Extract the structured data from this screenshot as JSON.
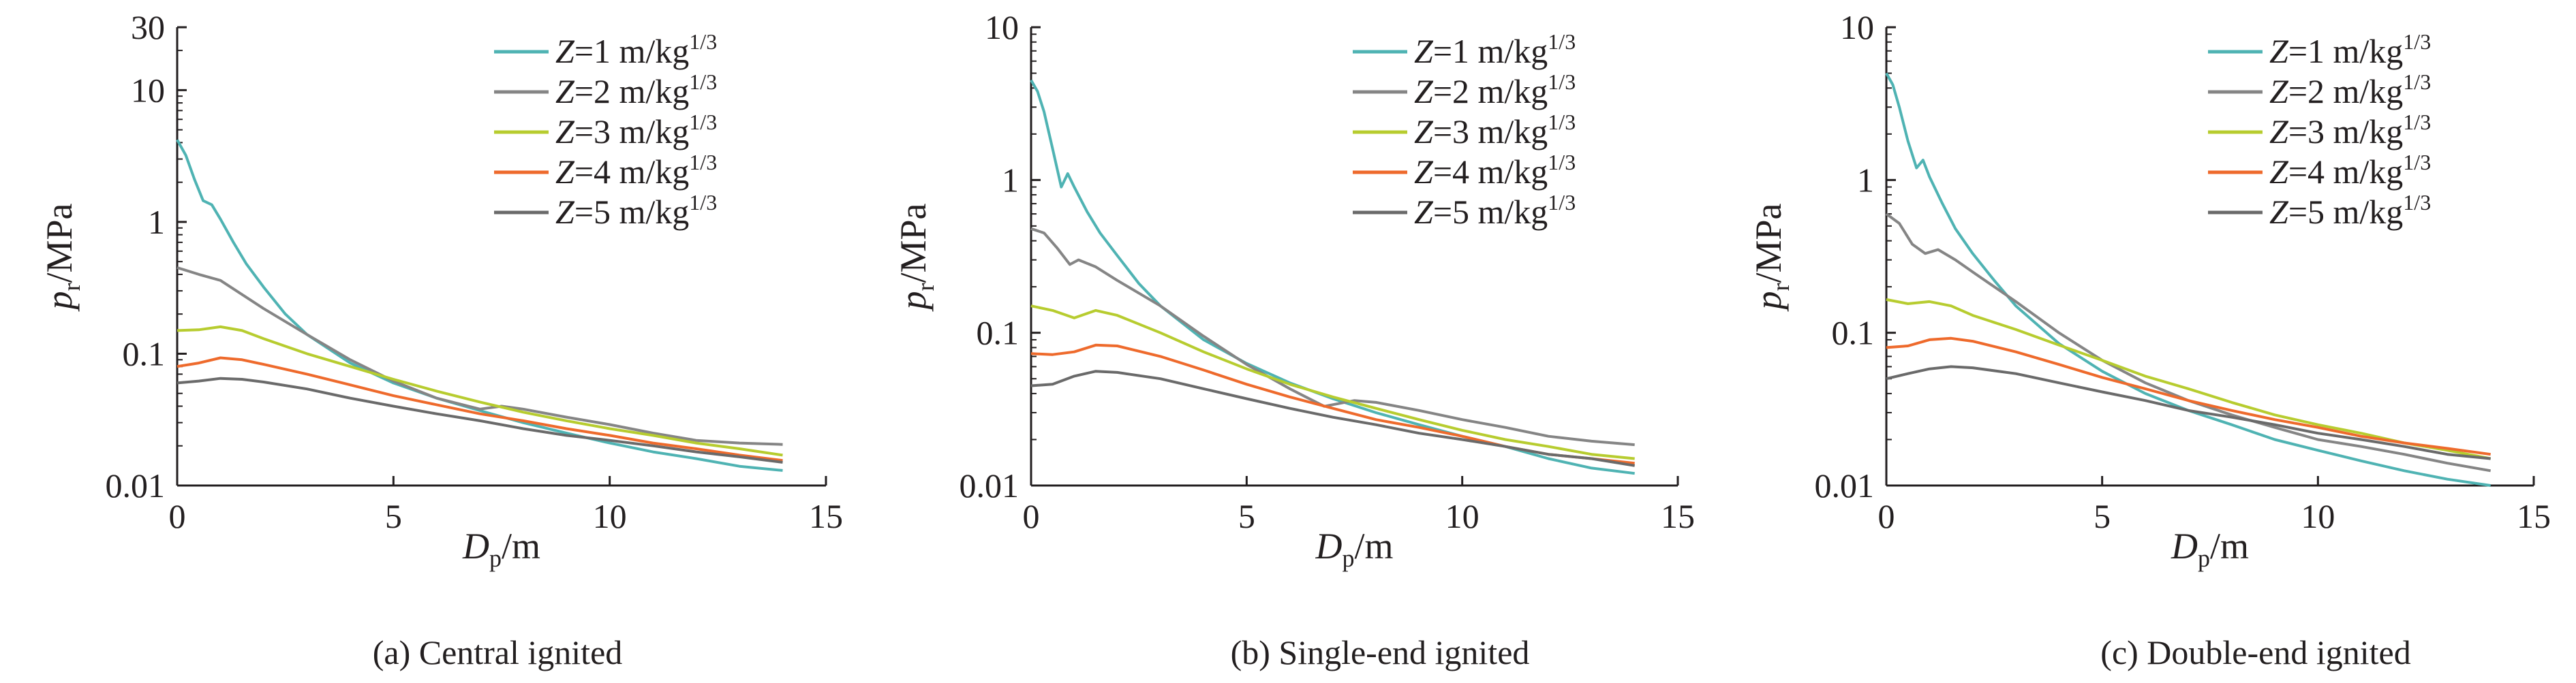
{
  "colors": {
    "z1": "#4fb3b3",
    "z2": "#858585",
    "z3": "#b7cc2f",
    "z4": "#ee6a2c",
    "z5": "#6a6a6a",
    "z1_inner": "#3d8f6a",
    "z4_inner": "#8a5aa0",
    "axis": "#231f20"
  },
  "legend": {
    "prefix": "Z",
    "unit_text": " m/kg",
    "unit_exp": "1/3",
    "entries": [
      {
        "value": "=1",
        "color_key": "z1"
      },
      {
        "value": "=2",
        "color_key": "z2"
      },
      {
        "value": "=3",
        "color_key": "z3"
      },
      {
        "value": "=4",
        "color_key": "z4"
      },
      {
        "value": "=5",
        "color_key": "z5"
      }
    ]
  },
  "axes": {
    "x_label_main": "D",
    "x_label_sub": "p",
    "x_label_unit": "/m",
    "y_label_main": "p",
    "y_label_sub": "r",
    "y_label_unit": "/MPa",
    "x_ticks": [
      "0",
      "5",
      "10",
      "15"
    ]
  },
  "chart_data": [
    {
      "type": "line",
      "title": "(a) Central ignited",
      "xlabel": "Dp/m",
      "ylabel": "pr/MPa",
      "xlim": [
        0,
        15
      ],
      "ylim": [
        0.01,
        30
      ],
      "y_scale": "log",
      "y_ticks": [
        0.01,
        0.1,
        1,
        10,
        30
      ],
      "y_tick_labels": [
        "0.01",
        "0.1",
        "1",
        "10",
        "30"
      ],
      "legend_position": "top-right",
      "series": [
        {
          "name": "Z=1 m/kg1/3",
          "color_key": "z1",
          "x": [
            0,
            0.2,
            0.4,
            0.6,
            0.8,
            1.0,
            1.3,
            1.6,
            2.0,
            2.5,
            3.0,
            4.0,
            5.0,
            6.0,
            7.0,
            8.0,
            9.0,
            10.0,
            11.0,
            12.0,
            13.0,
            14.0
          ],
          "y": [
            4.2,
            3.2,
            2.1,
            1.45,
            1.35,
            1.05,
            0.7,
            0.48,
            0.32,
            0.2,
            0.14,
            0.085,
            0.06,
            0.046,
            0.037,
            0.03,
            0.025,
            0.021,
            0.018,
            0.016,
            0.014,
            0.013
          ]
        },
        {
          "name": "Z=2 m/kg1/3",
          "color_key": "z2",
          "x": [
            0,
            0.5,
            1.0,
            2.0,
            3.0,
            4.0,
            5.0,
            6.0,
            7.0,
            7.5,
            8.0,
            9.0,
            10.0,
            11.0,
            12.0,
            13.0,
            14.0
          ],
          "y": [
            0.45,
            0.4,
            0.36,
            0.22,
            0.14,
            0.09,
            0.062,
            0.046,
            0.038,
            0.04,
            0.038,
            0.033,
            0.029,
            0.025,
            0.022,
            0.021,
            0.0205
          ]
        },
        {
          "name": "Z=3 m/kg1/3",
          "color_key": "z3",
          "x": [
            0,
            0.5,
            1.0,
            1.5,
            2.0,
            3.0,
            4.0,
            5.0,
            6.0,
            7.0,
            8.0,
            9.0,
            10.0,
            11.0,
            12.0,
            13.0,
            14.0
          ],
          "y": [
            0.15,
            0.152,
            0.16,
            0.15,
            0.13,
            0.1,
            0.08,
            0.064,
            0.052,
            0.043,
            0.036,
            0.031,
            0.027,
            0.024,
            0.021,
            0.019,
            0.017
          ]
        },
        {
          "name": "Z=4 m/kg1/3",
          "color_key": "z4",
          "x": [
            0,
            0.5,
            1.0,
            1.5,
            2.0,
            3.0,
            4.0,
            5.0,
            6.0,
            7.0,
            8.0,
            9.0,
            10.0,
            11.0,
            12.0,
            13.0,
            14.0
          ],
          "y": [
            0.08,
            0.085,
            0.093,
            0.09,
            0.083,
            0.07,
            0.058,
            0.048,
            0.041,
            0.035,
            0.031,
            0.027,
            0.024,
            0.021,
            0.019,
            0.017,
            0.0155
          ]
        },
        {
          "name": "Z=5 m/kg1/3",
          "color_key": "z5",
          "x": [
            0,
            0.5,
            1.0,
            1.5,
            2.0,
            3.0,
            4.0,
            5.0,
            6.0,
            7.0,
            8.0,
            9.0,
            10.0,
            11.0,
            12.0,
            13.0,
            14.0
          ],
          "y": [
            0.06,
            0.062,
            0.065,
            0.064,
            0.061,
            0.054,
            0.046,
            0.04,
            0.035,
            0.031,
            0.027,
            0.024,
            0.022,
            0.02,
            0.018,
            0.0165,
            0.015
          ]
        }
      ]
    },
    {
      "type": "line",
      "title": "(b) Single-end ignited",
      "xlabel": "Dp/m",
      "ylabel": "pr/MPa",
      "xlim": [
        0,
        15
      ],
      "ylim": [
        0.01,
        10
      ],
      "y_scale": "log",
      "y_ticks": [
        0.01,
        0.1,
        1,
        10
      ],
      "y_tick_labels": [
        "0.01",
        "0.1",
        "1",
        "10"
      ],
      "legend_position": "top-right",
      "series": [
        {
          "name": "Z=1 m/kg1/3",
          "color_key": "z1",
          "x": [
            0,
            0.15,
            0.3,
            0.5,
            0.7,
            0.85,
            1.0,
            1.3,
            1.6,
            2.0,
            2.5,
            3.0,
            4.0,
            5.0,
            6.0,
            7.0,
            8.0,
            9.0,
            10.0,
            11.0,
            12.0,
            13.0,
            14.0
          ],
          "y": [
            4.5,
            3.8,
            2.8,
            1.6,
            0.9,
            1.1,
            0.9,
            0.62,
            0.45,
            0.32,
            0.21,
            0.15,
            0.09,
            0.063,
            0.047,
            0.037,
            0.03,
            0.025,
            0.021,
            0.018,
            0.015,
            0.013,
            0.012
          ]
        },
        {
          "name": "Z=2 m/kg1/3",
          "color_key": "z2",
          "x": [
            0,
            0.3,
            0.6,
            0.9,
            1.1,
            1.5,
            2.0,
            3.0,
            4.0,
            5.0,
            6.0,
            6.8,
            7.5,
            8.0,
            9.0,
            10.0,
            11.0,
            12.0,
            13.0,
            14.0
          ],
          "y": [
            0.48,
            0.45,
            0.36,
            0.28,
            0.3,
            0.27,
            0.22,
            0.15,
            0.095,
            0.062,
            0.043,
            0.033,
            0.036,
            0.035,
            0.031,
            0.027,
            0.024,
            0.021,
            0.0195,
            0.0185
          ]
        },
        {
          "name": "Z=3 m/kg1/3",
          "color_key": "z3",
          "x": [
            0,
            0.5,
            1.0,
            1.5,
            2.0,
            3.0,
            4.0,
            5.0,
            6.0,
            7.0,
            8.0,
            9.0,
            10.0,
            11.0,
            12.0,
            13.0,
            14.0
          ],
          "y": [
            0.15,
            0.14,
            0.125,
            0.14,
            0.13,
            0.1,
            0.075,
            0.058,
            0.046,
            0.038,
            0.032,
            0.027,
            0.023,
            0.02,
            0.018,
            0.016,
            0.015
          ]
        },
        {
          "name": "Z=4 m/kg1/3",
          "color_key": "z4",
          "x": [
            0,
            0.5,
            1.0,
            1.5,
            2.0,
            3.0,
            4.0,
            5.0,
            6.0,
            7.0,
            8.0,
            9.0,
            10.0,
            11.0,
            12.0,
            13.0,
            14.0
          ],
          "y": [
            0.073,
            0.072,
            0.075,
            0.083,
            0.082,
            0.07,
            0.057,
            0.046,
            0.038,
            0.032,
            0.027,
            0.024,
            0.021,
            0.018,
            0.016,
            0.015,
            0.014
          ]
        },
        {
          "name": "Z=5 m/kg1/3",
          "color_key": "z5",
          "x": [
            0,
            0.5,
            1.0,
            1.5,
            2.0,
            3.0,
            4.0,
            5.0,
            6.0,
            7.0,
            8.0,
            9.0,
            10.0,
            11.0,
            12.0,
            13.0,
            14.0
          ],
          "y": [
            0.045,
            0.046,
            0.052,
            0.056,
            0.055,
            0.05,
            0.043,
            0.037,
            0.032,
            0.028,
            0.025,
            0.022,
            0.02,
            0.018,
            0.016,
            0.015,
            0.0135
          ]
        }
      ]
    },
    {
      "type": "line",
      "title": "(c) Double-end ignited",
      "xlabel": "Dp/m",
      "ylabel": "pr/MPa",
      "xlim": [
        0,
        15
      ],
      "ylim": [
        0.01,
        10
      ],
      "y_scale": "log",
      "y_ticks": [
        0.01,
        0.1,
        1,
        10
      ],
      "y_tick_labels": [
        "0.01",
        "0.1",
        "1",
        "10"
      ],
      "legend_position": "top-right",
      "series": [
        {
          "name": "Z=1 m/kg1/3",
          "color_key": "z1",
          "x": [
            0,
            0.15,
            0.3,
            0.5,
            0.7,
            0.85,
            1.0,
            1.3,
            1.6,
            2.0,
            2.5,
            3.0,
            4.0,
            5.0,
            6.0,
            7.0,
            8.0,
            9.0,
            10.0,
            11.0,
            12.0,
            13.0,
            14.0
          ],
          "y": [
            5.0,
            4.2,
            3.0,
            1.8,
            1.2,
            1.35,
            1.05,
            0.7,
            0.48,
            0.33,
            0.22,
            0.15,
            0.085,
            0.056,
            0.04,
            0.031,
            0.025,
            0.02,
            0.017,
            0.0145,
            0.0125,
            0.011,
            0.01
          ]
        },
        {
          "name": "Z=2 m/kg1/3",
          "color_key": "z2",
          "x": [
            0,
            0.3,
            0.6,
            0.9,
            1.2,
            1.6,
            2.0,
            3.0,
            4.0,
            5.0,
            6.0,
            7.0,
            8.0,
            9.0,
            10.0,
            11.0,
            12.0,
            13.0,
            14.0
          ],
          "y": [
            0.6,
            0.52,
            0.38,
            0.33,
            0.35,
            0.3,
            0.25,
            0.16,
            0.1,
            0.066,
            0.047,
            0.036,
            0.029,
            0.024,
            0.02,
            0.018,
            0.016,
            0.014,
            0.0125
          ]
        },
        {
          "name": "Z=3 m/kg1/3",
          "color_key": "z3",
          "x": [
            0,
            0.5,
            1.0,
            1.5,
            2.0,
            3.0,
            4.0,
            5.0,
            6.0,
            7.0,
            8.0,
            9.0,
            10.0,
            11.0,
            12.0,
            13.0,
            14.0
          ],
          "y": [
            0.165,
            0.155,
            0.16,
            0.15,
            0.13,
            0.105,
            0.083,
            0.066,
            0.052,
            0.043,
            0.035,
            0.029,
            0.025,
            0.022,
            0.019,
            0.017,
            0.015
          ]
        },
        {
          "name": "Z=4 m/kg1/3",
          "color_key": "z4",
          "x": [
            0,
            0.5,
            1.0,
            1.5,
            2.0,
            3.0,
            4.0,
            5.0,
            6.0,
            7.0,
            8.0,
            9.0,
            10.0,
            11.0,
            12.0,
            13.0,
            14.0
          ],
          "y": [
            0.08,
            0.082,
            0.09,
            0.092,
            0.088,
            0.075,
            0.062,
            0.051,
            0.043,
            0.036,
            0.031,
            0.027,
            0.024,
            0.021,
            0.019,
            0.0175,
            0.016
          ]
        },
        {
          "name": "Z=5 m/kg1/3",
          "color_key": "z5",
          "x": [
            0,
            0.5,
            1.0,
            1.5,
            2.0,
            3.0,
            4.0,
            5.0,
            6.0,
            7.0,
            8.0,
            9.0,
            10.0,
            11.0,
            12.0,
            13.0,
            14.0
          ],
          "y": [
            0.05,
            0.054,
            0.058,
            0.06,
            0.059,
            0.054,
            0.047,
            0.041,
            0.036,
            0.031,
            0.028,
            0.025,
            0.022,
            0.02,
            0.018,
            0.016,
            0.015
          ]
        }
      ]
    }
  ]
}
